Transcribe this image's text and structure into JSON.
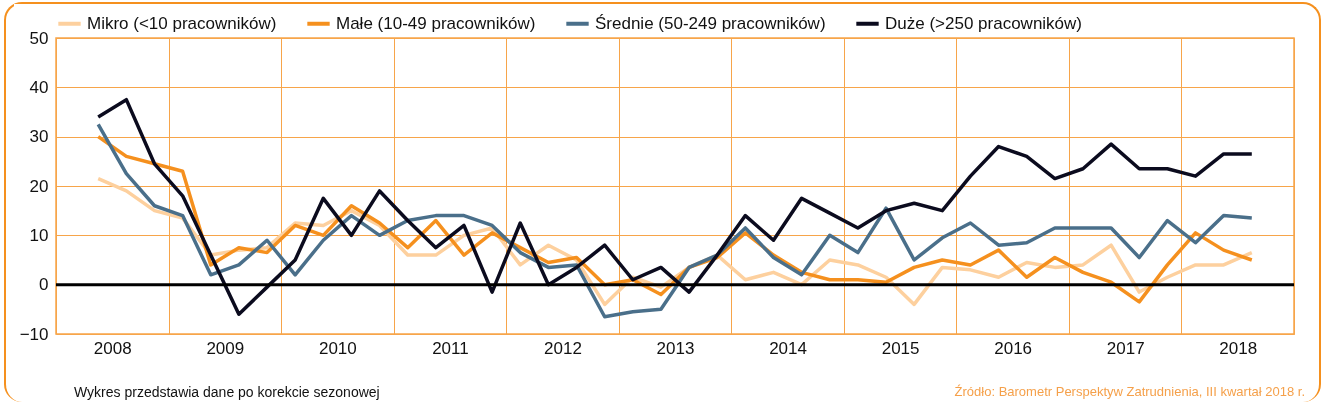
{
  "chart_data": {
    "type": "line",
    "x": [
      2008.375,
      2008.625,
      2008.875,
      2009.125,
      2009.375,
      2009.625,
      2009.875,
      2010.125,
      2010.375,
      2010.625,
      2010.875,
      2011.125,
      2011.375,
      2011.625,
      2011.875,
      2012.125,
      2012.375,
      2012.625,
      2012.875,
      2013.125,
      2013.375,
      2013.625,
      2013.875,
      2014.125,
      2014.375,
      2014.625,
      2014.875,
      2015.125,
      2015.375,
      2015.625,
      2015.875,
      2016.125,
      2016.375,
      2016.625,
      2016.875,
      2017.125,
      2017.375,
      2017.625,
      2017.875,
      2018.125,
      2018.375,
      2018.625
    ],
    "series": [
      {
        "name": "Mikro (<10 pracowników)",
        "color": "#fdd09e",
        "values": [
          21.5,
          19,
          15,
          13.5,
          6,
          7,
          7.5,
          12.5,
          12,
          15,
          12,
          6,
          6,
          10,
          11.5,
          4,
          8,
          5,
          -4,
          1.5,
          -0.5,
          3.5,
          6,
          1,
          2.5,
          0,
          5,
          4,
          1.5,
          -4,
          3.5,
          3,
          1.5,
          4.5,
          3.5,
          4,
          8,
          -1.5,
          1.5,
          4,
          4,
          6.5
        ]
      },
      {
        "name": "Małe (10-49 pracowników)",
        "color": "#f5901e",
        "values": [
          30,
          26,
          24.5,
          23,
          4,
          7.5,
          6.5,
          12,
          10,
          16,
          12.5,
          7.5,
          13,
          6,
          10.5,
          7.5,
          4.5,
          5.5,
          0,
          1,
          -2,
          3.5,
          5.5,
          10.5,
          6,
          2.5,
          1,
          1,
          0.5,
          3.5,
          5,
          4,
          7,
          1.5,
          5.5,
          2.5,
          0.5,
          -3.5,
          4,
          10.5,
          7,
          5
        ]
      },
      {
        "name": "Średnie (50-249 pracowników)",
        "color": "#4a6f8a",
        "values": [
          32.5,
          22.5,
          16,
          14,
          2,
          4,
          9,
          2,
          9,
          14,
          10,
          13,
          14,
          14,
          12,
          6.5,
          3.5,
          4,
          -6.5,
          -5.5,
          -5,
          3.5,
          6,
          11.5,
          5.5,
          2,
          10,
          6.5,
          15.5,
          5,
          9.5,
          12.5,
          8,
          8.5,
          11.5,
          11.5,
          11.5,
          5.5,
          13,
          8.5,
          14,
          13.5
        ]
      },
      {
        "name": "Duże (>250 pracowników)",
        "color": "#0b0b1e",
        "values": [
          34,
          37.5,
          24.5,
          18,
          6,
          -6,
          -0.5,
          5,
          17.5,
          10,
          19,
          13,
          7.5,
          12,
          -1.5,
          12.5,
          0,
          3.5,
          8,
          1,
          3.5,
          -1.5,
          6,
          14,
          9,
          17.5,
          14.5,
          11.5,
          15,
          16.5,
          15,
          22,
          28,
          26,
          21.5,
          23.5,
          28.5,
          23.5,
          23.5,
          22,
          26.5,
          26.5
        ]
      }
    ],
    "xlim": [
      2008,
      2019
    ],
    "xticks": [
      {
        "value": 2008,
        "label": null
      },
      {
        "value": 2008.5,
        "label": "2008"
      },
      {
        "value": 2009,
        "label": null
      },
      {
        "value": 2009.5,
        "label": "2009"
      },
      {
        "value": 2010,
        "label": null
      },
      {
        "value": 2010.5,
        "label": "2010"
      },
      {
        "value": 2011,
        "label": null
      },
      {
        "value": 2011.5,
        "label": "2011"
      },
      {
        "value": 2012,
        "label": null
      },
      {
        "value": 2012.5,
        "label": "2012"
      },
      {
        "value": 2013,
        "label": null
      },
      {
        "value": 2013.5,
        "label": "2013"
      },
      {
        "value": 2014,
        "label": null
      },
      {
        "value": 2014.5,
        "label": "2014"
      },
      {
        "value": 2015,
        "label": null
      },
      {
        "value": 2015.5,
        "label": "2015"
      },
      {
        "value": 2016,
        "label": null
      },
      {
        "value": 2016.5,
        "label": "2016"
      },
      {
        "value": 2017,
        "label": null
      },
      {
        "value": 2017.5,
        "label": "2017"
      },
      {
        "value": 2018,
        "label": null
      },
      {
        "value": 2018.5,
        "label": "2018"
      },
      {
        "value": 2019,
        "label": null
      }
    ],
    "ylim": [
      -10,
      50
    ],
    "yticks": [
      -10,
      0,
      10,
      20,
      30,
      40,
      50
    ],
    "grid": true,
    "legend": "top",
    "marker": "none",
    "line_style": "solid",
    "ref_lines": [
      {
        "axis": "y",
        "value": 0,
        "color": "#000000"
      }
    ],
    "annotations": [
      "Wykres przedstawia dane po korekcie sezonowej",
      "Źródło: Barometr Perspektyw Zatrudnienia, III kwartał 2018 r."
    ]
  }
}
